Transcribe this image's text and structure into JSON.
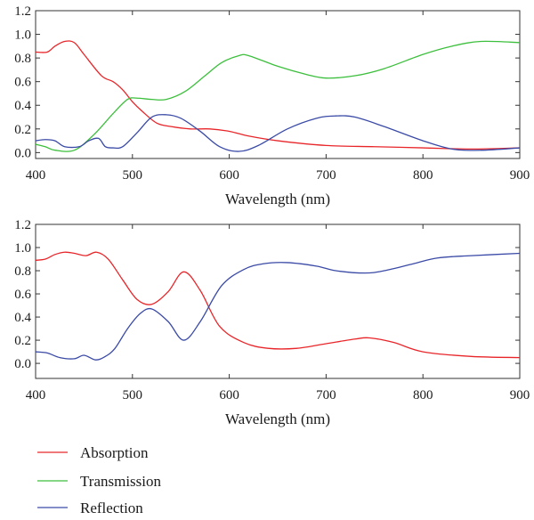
{
  "chart_data": [
    {
      "type": "line",
      "xlabel": "Wavelength (nm)",
      "ylabel": "",
      "xlim": [
        400,
        900
      ],
      "ylim": [
        -0.05,
        1.2
      ],
      "xticks": [
        400,
        500,
        600,
        700,
        800,
        900
      ],
      "yticks": [
        0.0,
        0.2,
        0.4,
        0.6,
        0.8,
        1.0,
        1.2
      ],
      "x_tick_labels": [
        "400",
        "500",
        "600",
        "700",
        "800",
        "900"
      ],
      "y_tick_labels": [
        "0.0",
        "0.2",
        "0.4",
        "0.6",
        "0.8",
        "1.0",
        "1.2"
      ],
      "grid": false,
      "series": [
        {
          "name": "Absorption",
          "color": "#e8262a",
          "points": [
            [
              400,
              0.85
            ],
            [
              412,
              0.85
            ],
            [
              420,
              0.9
            ],
            [
              430,
              0.94
            ],
            [
              440,
              0.93
            ],
            [
              450,
              0.83
            ],
            [
              468,
              0.65
            ],
            [
              480,
              0.6
            ],
            [
              490,
              0.53
            ],
            [
              500,
              0.43
            ],
            [
              510,
              0.35
            ],
            [
              525,
              0.25
            ],
            [
              540,
              0.22
            ],
            [
              560,
              0.2
            ],
            [
              580,
              0.2
            ],
            [
              600,
              0.18
            ],
            [
              620,
              0.14
            ],
            [
              650,
              0.1
            ],
            [
              700,
              0.06
            ],
            [
              750,
              0.05
            ],
            [
              800,
              0.04
            ],
            [
              850,
              0.03
            ],
            [
              900,
              0.04
            ]
          ]
        },
        {
          "name": "Transmission",
          "color": "#3cbf3c",
          "points": [
            [
              400,
              0.07
            ],
            [
              410,
              0.05
            ],
            [
              420,
              0.02
            ],
            [
              440,
              0.02
            ],
            [
              460,
              0.15
            ],
            [
              480,
              0.33
            ],
            [
              495,
              0.45
            ],
            [
              505,
              0.46
            ],
            [
              520,
              0.45
            ],
            [
              535,
              0.45
            ],
            [
              555,
              0.52
            ],
            [
              575,
              0.65
            ],
            [
              592,
              0.76
            ],
            [
              610,
              0.82
            ],
            [
              620,
              0.82
            ],
            [
              650,
              0.73
            ],
            [
              680,
              0.66
            ],
            [
              700,
              0.63
            ],
            [
              730,
              0.65
            ],
            [
              760,
              0.71
            ],
            [
              800,
              0.83
            ],
            [
              830,
              0.9
            ],
            [
              860,
              0.94
            ],
            [
              900,
              0.93
            ]
          ]
        },
        {
          "name": "Reflection",
          "color": "#3a4aa6",
          "points": [
            [
              400,
              0.1
            ],
            [
              410,
              0.11
            ],
            [
              420,
              0.1
            ],
            [
              430,
              0.05
            ],
            [
              445,
              0.05
            ],
            [
              455,
              0.1
            ],
            [
              465,
              0.12
            ],
            [
              472,
              0.05
            ],
            [
              480,
              0.04
            ],
            [
              490,
              0.05
            ],
            [
              505,
              0.17
            ],
            [
              520,
              0.3
            ],
            [
              535,
              0.32
            ],
            [
              550,
              0.29
            ],
            [
              570,
              0.18
            ],
            [
              590,
              0.05
            ],
            [
              610,
              0.01
            ],
            [
              630,
              0.06
            ],
            [
              660,
              0.2
            ],
            [
              690,
              0.29
            ],
            [
              710,
              0.31
            ],
            [
              730,
              0.3
            ],
            [
              760,
              0.22
            ],
            [
              800,
              0.1
            ],
            [
              830,
              0.03
            ],
            [
              860,
              0.02
            ],
            [
              900,
              0.04
            ]
          ]
        }
      ]
    },
    {
      "type": "line",
      "xlabel": "Wavelength (nm)",
      "ylabel": "",
      "xlim": [
        400,
        900
      ],
      "ylim": [
        -0.13,
        1.2
      ],
      "xticks": [
        400,
        500,
        600,
        700,
        800,
        900
      ],
      "yticks": [
        0.0,
        0.2,
        0.4,
        0.6,
        0.8,
        1.0,
        1.2
      ],
      "x_tick_labels": [
        "400",
        "500",
        "600",
        "700",
        "800",
        "900"
      ],
      "y_tick_labels": [
        "0.0",
        "0.2",
        "0.4",
        "0.6",
        "0.8",
        "1.0",
        "1.2"
      ],
      "grid": false,
      "series": [
        {
          "name": "Absorption",
          "color": "#e8262a",
          "points": [
            [
              400,
              0.89
            ],
            [
              410,
              0.9
            ],
            [
              420,
              0.94
            ],
            [
              430,
              0.96
            ],
            [
              440,
              0.95
            ],
            [
              452,
              0.93
            ],
            [
              463,
              0.96
            ],
            [
              475,
              0.9
            ],
            [
              490,
              0.72
            ],
            [
              505,
              0.55
            ],
            [
              520,
              0.51
            ],
            [
              537,
              0.62
            ],
            [
              553,
              0.79
            ],
            [
              570,
              0.63
            ],
            [
              590,
              0.32
            ],
            [
              615,
              0.18
            ],
            [
              640,
              0.13
            ],
            [
              670,
              0.13
            ],
            [
              700,
              0.17
            ],
            [
              730,
              0.21
            ],
            [
              745,
              0.22
            ],
            [
              770,
              0.18
            ],
            [
              800,
              0.1
            ],
            [
              850,
              0.06
            ],
            [
              900,
              0.05
            ]
          ]
        },
        {
          "name": "Reflection",
          "color": "#3a4aa6",
          "points": [
            [
              400,
              0.1
            ],
            [
              412,
              0.09
            ],
            [
              425,
              0.05
            ],
            [
              440,
              0.04
            ],
            [
              450,
              0.07
            ],
            [
              462,
              0.03
            ],
            [
              472,
              0.06
            ],
            [
              482,
              0.13
            ],
            [
              495,
              0.3
            ],
            [
              508,
              0.43
            ],
            [
              520,
              0.47
            ],
            [
              537,
              0.36
            ],
            [
              553,
              0.2
            ],
            [
              570,
              0.36
            ],
            [
              592,
              0.67
            ],
            [
              615,
              0.81
            ],
            [
              635,
              0.86
            ],
            [
              660,
              0.87
            ],
            [
              690,
              0.84
            ],
            [
              710,
              0.8
            ],
            [
              740,
              0.78
            ],
            [
              760,
              0.8
            ],
            [
              790,
              0.86
            ],
            [
              815,
              0.91
            ],
            [
              850,
              0.93
            ],
            [
              900,
              0.95
            ]
          ]
        }
      ]
    }
  ],
  "legend": [
    {
      "label": "Absorption",
      "color": "#e8262a"
    },
    {
      "label": "Transmission",
      "color": "#3cbf3c"
    },
    {
      "label": "Reflection",
      "color": "#3a4aa6"
    }
  ]
}
